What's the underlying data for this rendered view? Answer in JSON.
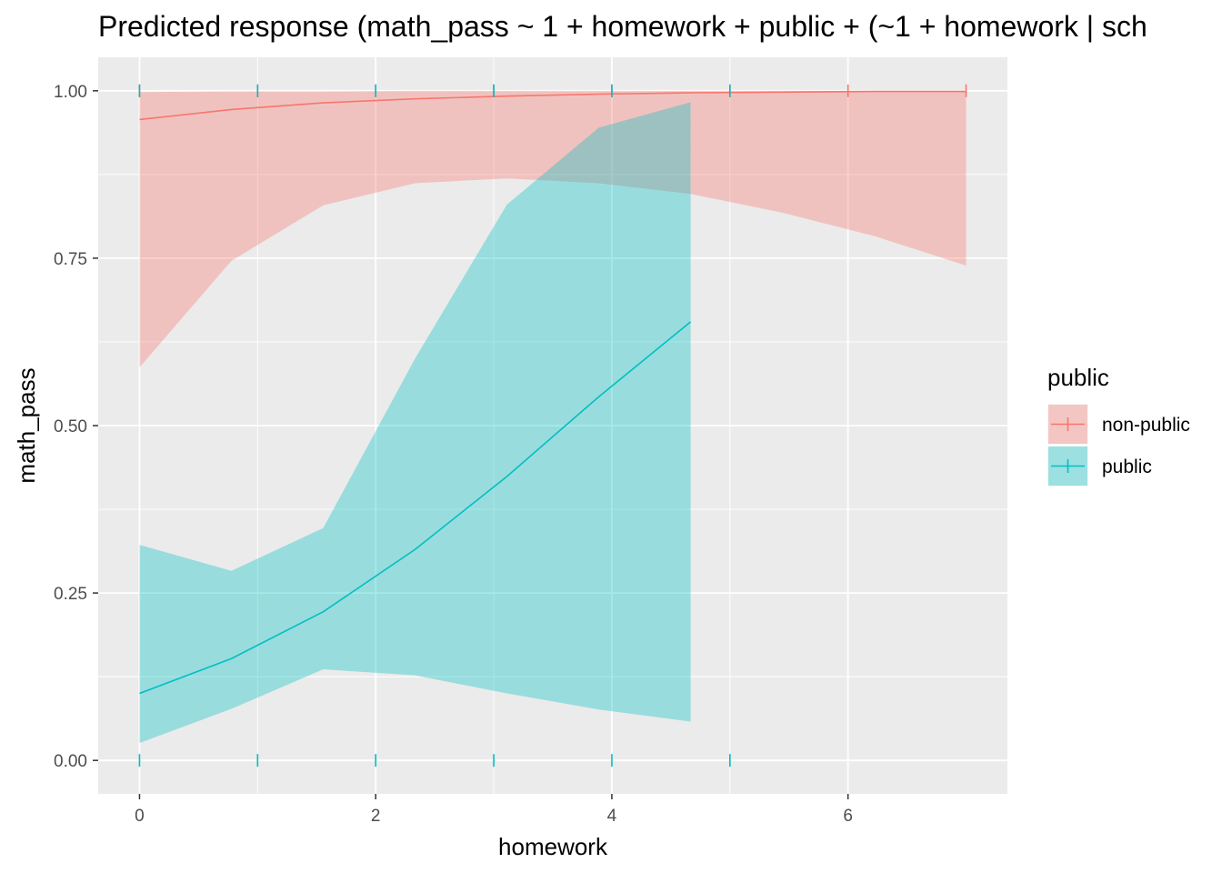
{
  "chart_data": {
    "type": "line",
    "title": "Predicted response (math_pass ~ 1 + homework + public + (~1 + homework | sch",
    "xlabel": "homework",
    "ylabel": "math_pass",
    "xlim": [
      -0.35,
      7.35
    ],
    "ylim": [
      -0.05,
      1.05
    ],
    "x_ticks": [
      0,
      2,
      4,
      6
    ],
    "x_tick_labels": [
      "0",
      "2",
      "4",
      "6"
    ],
    "y_ticks": [
      0,
      0.25,
      0.5,
      0.75,
      1
    ],
    "y_tick_labels": [
      "0.00",
      "0.25",
      "0.50",
      "0.75",
      "1.00"
    ],
    "grid": true,
    "legend": {
      "title": "public",
      "position": "right"
    },
    "series": [
      {
        "name": "non-public",
        "color": "#F8766D",
        "x": [
          0,
          0.778,
          1.556,
          2.333,
          3.111,
          3.889,
          4.667,
          5.444,
          6.222,
          7.0
        ],
        "y": [
          0.957,
          0.972,
          0.982,
          0.988,
          0.992,
          0.995,
          0.997,
          0.998,
          0.999,
          0.999
        ],
        "lower": [
          0.587,
          0.746,
          0.829,
          0.862,
          0.869,
          0.862,
          0.846,
          0.818,
          0.783,
          0.739
        ],
        "upper": [
          0.998,
          0.999,
          0.999,
          1.0,
          1.0,
          1.0,
          1.0,
          1.0,
          1.0,
          1.0
        ],
        "rug": [
          0,
          1,
          2,
          3,
          4,
          5,
          6,
          7
        ]
      },
      {
        "name": "public",
        "color": "#00BFC4",
        "x": [
          0,
          0.778,
          1.556,
          2.333,
          3.111,
          3.889,
          4.667
        ],
        "y": [
          0.1,
          0.152,
          0.222,
          0.315,
          0.424,
          0.543,
          0.655
        ],
        "lower": [
          0.026,
          0.077,
          0.136,
          0.127,
          0.1,
          0.076,
          0.058
        ],
        "upper": [
          0.322,
          0.283,
          0.347,
          0.6,
          0.83,
          0.945,
          0.983
        ],
        "rug": [
          0,
          1,
          2,
          3,
          4,
          5
        ]
      }
    ]
  }
}
